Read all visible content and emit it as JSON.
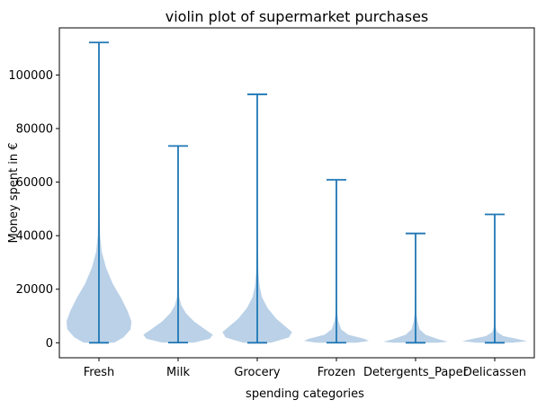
{
  "chart_data": {
    "type": "violin",
    "title": "violin plot of supermarket purchases",
    "xlabel": "spending categories",
    "ylabel": "Money spent in €",
    "ylim": [
      -5600,
      117600
    ],
    "yticks": [
      0,
      20000,
      40000,
      60000,
      80000,
      100000
    ],
    "ytick_labels": [
      "0",
      "20000",
      "40000",
      "60000",
      "80000",
      "100000"
    ],
    "grid": false,
    "legend": "none",
    "colors": {
      "body": "#aec9e3",
      "line": "#1f77b4"
    },
    "categories": [
      "Fresh",
      "Milk",
      "Grocery",
      "Frozen",
      "Detergents_Paper",
      "Delicassen"
    ],
    "violins": [
      {
        "category": "Fresh",
        "min": 3,
        "max": 112151,
        "profile": [
          [
            3,
            0.38
          ],
          [
            2000,
            0.62
          ],
          [
            5000,
            0.8
          ],
          [
            8000,
            0.82
          ],
          [
            12000,
            0.72
          ],
          [
            17000,
            0.55
          ],
          [
            22000,
            0.35
          ],
          [
            28000,
            0.18
          ],
          [
            34000,
            0.07
          ],
          [
            40000,
            0.03
          ],
          [
            55000,
            0.015
          ],
          [
            75000,
            0.008
          ],
          [
            112151,
            0.004
          ]
        ]
      },
      {
        "category": "Milk",
        "min": 55,
        "max": 73498,
        "profile": [
          [
            55,
            0.4
          ],
          [
            1500,
            0.8
          ],
          [
            3000,
            0.88
          ],
          [
            5000,
            0.68
          ],
          [
            8000,
            0.4
          ],
          [
            11000,
            0.2
          ],
          [
            14000,
            0.08
          ],
          [
            17000,
            0.03
          ],
          [
            25000,
            0.015
          ],
          [
            40000,
            0.008
          ],
          [
            73498,
            0.004
          ]
        ]
      },
      {
        "category": "Grocery",
        "min": 3,
        "max": 92780,
        "profile": [
          [
            3,
            0.35
          ],
          [
            2000,
            0.8
          ],
          [
            4000,
            0.88
          ],
          [
            6000,
            0.72
          ],
          [
            9000,
            0.48
          ],
          [
            13000,
            0.26
          ],
          [
            17000,
            0.12
          ],
          [
            21000,
            0.06
          ],
          [
            26000,
            0.03
          ],
          [
            40000,
            0.012
          ],
          [
            92780,
            0.004
          ]
        ]
      },
      {
        "category": "Frozen",
        "min": 25,
        "max": 60869,
        "profile": [
          [
            25,
            0.5
          ],
          [
            700,
            0.82
          ],
          [
            1500,
            0.7
          ],
          [
            3000,
            0.3
          ],
          [
            5000,
            0.12
          ],
          [
            8000,
            0.05
          ],
          [
            11000,
            0.02
          ],
          [
            20000,
            0.008
          ],
          [
            60869,
            0.003
          ]
        ]
      },
      {
        "category": "Detergents_Paper",
        "min": 3,
        "max": 40827,
        "profile": [
          [
            3,
            0.55
          ],
          [
            400,
            0.82
          ],
          [
            1200,
            0.6
          ],
          [
            3000,
            0.25
          ],
          [
            5000,
            0.1
          ],
          [
            8000,
            0.05
          ],
          [
            11000,
            0.02
          ],
          [
            20000,
            0.008
          ],
          [
            40827,
            0.003
          ]
        ]
      },
      {
        "category": "Delicassen",
        "min": 3,
        "max": 47943,
        "profile": [
          [
            3,
            0.45
          ],
          [
            600,
            0.82
          ],
          [
            1500,
            0.55
          ],
          [
            2500,
            0.22
          ],
          [
            4000,
            0.06
          ],
          [
            6000,
            0.02
          ],
          [
            15000,
            0.006
          ],
          [
            47943,
            0.003
          ]
        ]
      }
    ]
  }
}
